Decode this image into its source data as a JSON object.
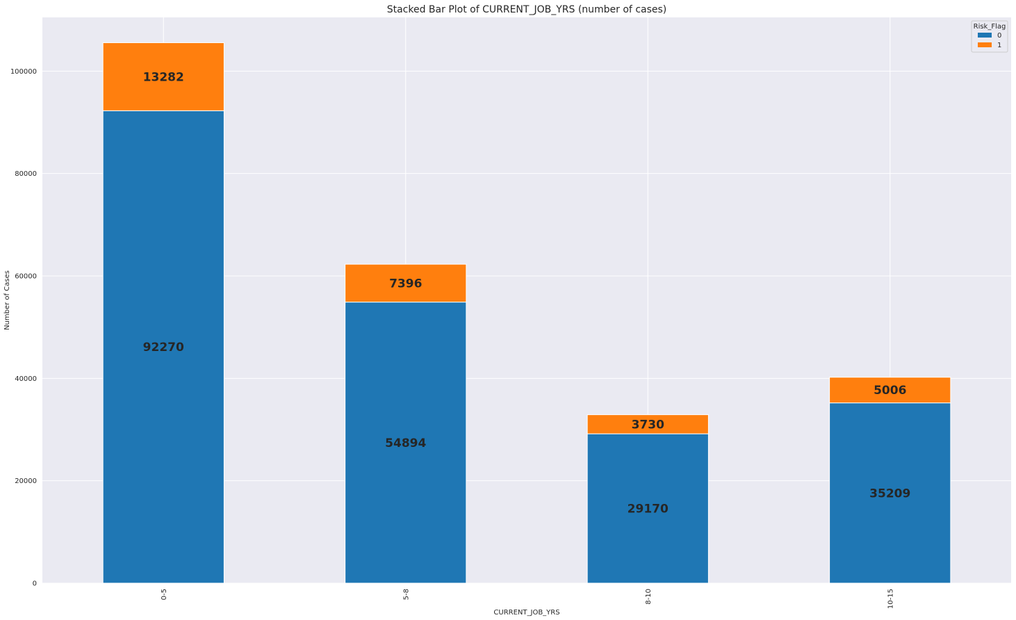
{
  "chart_data": {
    "type": "bar",
    "stacked": true,
    "title": "Stacked Bar Plot of CURRENT_JOB_YRS (number of cases)",
    "xlabel": "CURRENT_JOB_YRS",
    "ylabel": "Number of Cases",
    "categories": [
      "0-5",
      "5-8",
      "8-10",
      "10-15"
    ],
    "series": [
      {
        "name": "0",
        "color": "#1f77b4",
        "values": [
          92270,
          54894,
          29170,
          35209
        ]
      },
      {
        "name": "1",
        "color": "#ff7f0e",
        "values": [
          13282,
          7396,
          3730,
          5006
        ]
      }
    ],
    "ylim": [
      0,
      110500
    ],
    "yticks": [
      0,
      20000,
      40000,
      60000,
      80000,
      100000
    ],
    "grid": true,
    "legend": {
      "title": "Risk_Flag",
      "placement": "top-right"
    },
    "background": "#eaeaf2"
  }
}
